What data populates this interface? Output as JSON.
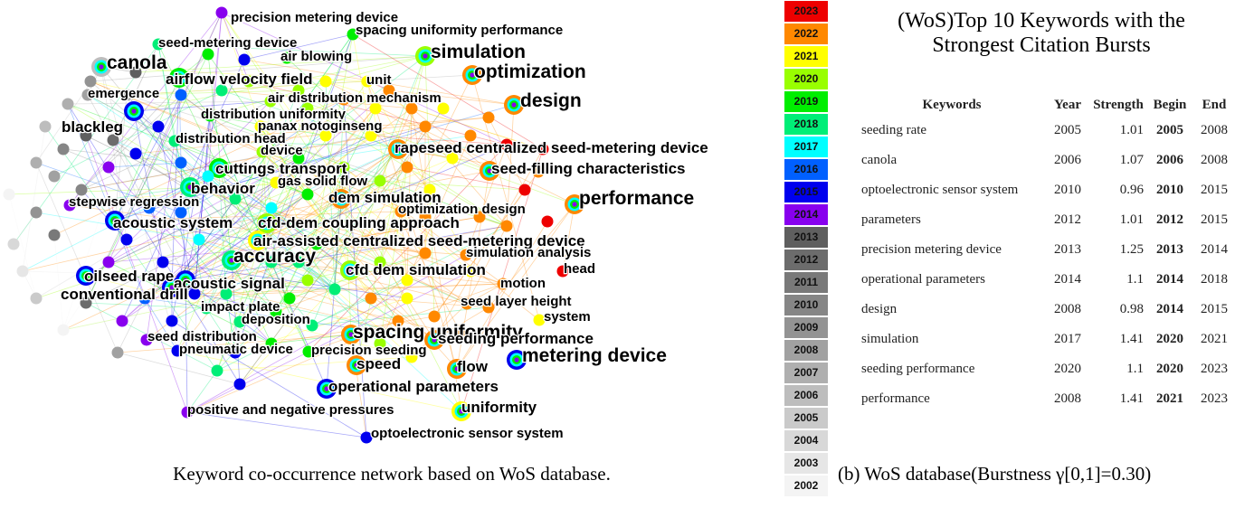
{
  "network": {
    "caption": "Keyword co-occurrence network based on WoS database.",
    "year_colors": {
      "2002": "#f4f4f4",
      "2003": "#e6e6e6",
      "2004": "#d8d8d8",
      "2005": "#cacaca",
      "2006": "#bdbdbd",
      "2007": "#afafaf",
      "2008": "#a1a1a1",
      "2009": "#939393",
      "2010": "#868686",
      "2011": "#797979",
      "2012": "#6c6c6c",
      "2013": "#5f5f5f",
      "2014": "#8800ee",
      "2015": "#0000ee",
      "2016": "#0060ff",
      "2017": "#00ffff",
      "2018": "#00ee77",
      "2019": "#00ee00",
      "2020": "#99ff00",
      "2021": "#ffff00",
      "2022": "#ff8800",
      "2023": "#ee0000"
    },
    "keywords": [
      {
        "label": "precision metering device",
        "year": "2014",
        "size": "m"
      },
      {
        "label": "spacing uniformity performance",
        "year": "2019",
        "size": "m"
      },
      {
        "label": "seed-metering device",
        "year": "2018",
        "size": "m"
      },
      {
        "label": "simulation",
        "year": "2020",
        "size": "l"
      },
      {
        "label": "canola",
        "year": "2006",
        "size": "l"
      },
      {
        "label": "air blowing",
        "year": "2019",
        "size": "m"
      },
      {
        "label": "optimization",
        "year": "2022",
        "size": "l"
      },
      {
        "label": "airflow velocity field",
        "year": "2019",
        "size": "l"
      },
      {
        "label": "unit",
        "year": "2021",
        "size": "m"
      },
      {
        "label": "emergence",
        "year": "2008",
        "size": "m"
      },
      {
        "label": "air distribution mechanism",
        "year": "2020",
        "size": "m"
      },
      {
        "label": "design",
        "year": "2022",
        "size": "l"
      },
      {
        "label": "blackleg",
        "year": "2015",
        "size": "l"
      },
      {
        "label": "distribution uniformity",
        "year": "2019",
        "size": "m"
      },
      {
        "label": "panax notoginseng",
        "year": "2021",
        "size": "m"
      },
      {
        "label": "distribution head",
        "year": "2018",
        "size": "m"
      },
      {
        "label": "device",
        "year": "2020",
        "size": "m"
      },
      {
        "label": "rapeseed centralized seed-metering device",
        "year": "2022",
        "size": "l"
      },
      {
        "label": "cuttings transport",
        "year": "2019",
        "size": "l"
      },
      {
        "label": "seed-filling characteristics",
        "year": "2022",
        "size": "l"
      },
      {
        "label": "gas solid flow",
        "year": "2021",
        "size": "m"
      },
      {
        "label": "behavior",
        "year": "2018",
        "size": "l"
      },
      {
        "label": "performance",
        "year": "2022",
        "size": "l"
      },
      {
        "label": "dem simulation",
        "year": "2022",
        "size": "l"
      },
      {
        "label": "stepwise regression",
        "year": "2014",
        "size": "m"
      },
      {
        "label": "optimization design",
        "year": "2022",
        "size": "m"
      },
      {
        "label": "acoustic system",
        "year": "2015",
        "size": "l"
      },
      {
        "label": "cfd-dem coupling approach",
        "year": "2020",
        "size": "l"
      },
      {
        "label": "air-assisted centralized seed-metering device",
        "year": "2021",
        "size": "l"
      },
      {
        "label": "simulation analysis",
        "year": "2022",
        "size": "m"
      },
      {
        "label": "accuracy",
        "year": "2018",
        "size": "l"
      },
      {
        "label": "cfd dem simulation",
        "year": "2020",
        "size": "l"
      },
      {
        "label": "head",
        "year": "2023",
        "size": "m"
      },
      {
        "label": "oilseed rape",
        "year": "2015",
        "size": "l"
      },
      {
        "label": "acoustic signal",
        "year": "2015",
        "size": "l"
      },
      {
        "label": "motion",
        "year": "2022",
        "size": "m"
      },
      {
        "label": "conventional drill",
        "year": "2015",
        "size": "l"
      },
      {
        "label": "seed layer height",
        "year": "2022",
        "size": "m"
      },
      {
        "label": "impact plate",
        "year": "2018",
        "size": "m"
      },
      {
        "label": "deposition",
        "year": "2018",
        "size": "m"
      },
      {
        "label": "spacing uniformity",
        "year": "2022",
        "size": "l"
      },
      {
        "label": "system",
        "year": "2021",
        "size": "m"
      },
      {
        "label": "seed distribution",
        "year": "2014",
        "size": "m"
      },
      {
        "label": "seeding performance",
        "year": "2022",
        "size": "l"
      },
      {
        "label": "pneumatic device",
        "year": "2015",
        "size": "m"
      },
      {
        "label": "precision seeding",
        "year": "2019",
        "size": "m"
      },
      {
        "label": "metering device",
        "year": "2015",
        "size": "l"
      },
      {
        "label": "speed",
        "year": "2022",
        "size": "l"
      },
      {
        "label": "flow",
        "year": "2022",
        "size": "l"
      },
      {
        "label": "operational parameters",
        "year": "2015",
        "size": "l"
      },
      {
        "label": "uniformity",
        "year": "2021",
        "size": "l"
      },
      {
        "label": "positive and negative pressures",
        "year": "2014",
        "size": "m"
      },
      {
        "label": "optoelectronic sensor system",
        "year": "2015",
        "size": "m"
      }
    ]
  },
  "year_legend": [
    "2023",
    "2022",
    "2021",
    "2020",
    "2019",
    "2018",
    "2017",
    "2016",
    "2015",
    "2014",
    "2013",
    "2012",
    "2011",
    "2010",
    "2009",
    "2008",
    "2007",
    "2006",
    "2005",
    "2004",
    "2003",
    "2002"
  ],
  "burst": {
    "title_line1": "(WoS)Top 10 Keywords with the",
    "title_line2": "Strongest Citation Bursts",
    "headers": {
      "keywords": "Keywords",
      "year": "Year",
      "strength": "Strength",
      "begin": "Begin",
      "end": "End"
    },
    "rows": [
      {
        "keyword": "seeding rate",
        "year": "2005",
        "strength": "1.01",
        "begin": "2005",
        "end": "2008"
      },
      {
        "keyword": "canola",
        "year": "2006",
        "strength": "1.07",
        "begin": "2006",
        "end": "2008"
      },
      {
        "keyword": "optoelectronic sensor system",
        "year": "2010",
        "strength": "0.96",
        "begin": "2010",
        "end": "2015"
      },
      {
        "keyword": "parameters",
        "year": "2012",
        "strength": "1.01",
        "begin": "2012",
        "end": "2015"
      },
      {
        "keyword": "precision metering device",
        "year": "2013",
        "strength": "1.25",
        "begin": "2013",
        "end": "2014"
      },
      {
        "keyword": "operational parameters",
        "year": "2014",
        "strength": "1.1",
        "begin": "2014",
        "end": "2018"
      },
      {
        "keyword": "design",
        "year": "2008",
        "strength": "0.98",
        "begin": "2014",
        "end": "2015"
      },
      {
        "keyword": "simulation",
        "year": "2017",
        "strength": "1.41",
        "begin": "2020",
        "end": "2021"
      },
      {
        "keyword": "seeding performance",
        "year": "2020",
        "strength": "1.1",
        "begin": "2020",
        "end": "2023"
      },
      {
        "keyword": "performance",
        "year": "2008",
        "strength": "1.41",
        "begin": "2021",
        "end": "2023"
      }
    ],
    "caption": "(b) WoS database(Burstness γ[0,1]=0.30)"
  }
}
